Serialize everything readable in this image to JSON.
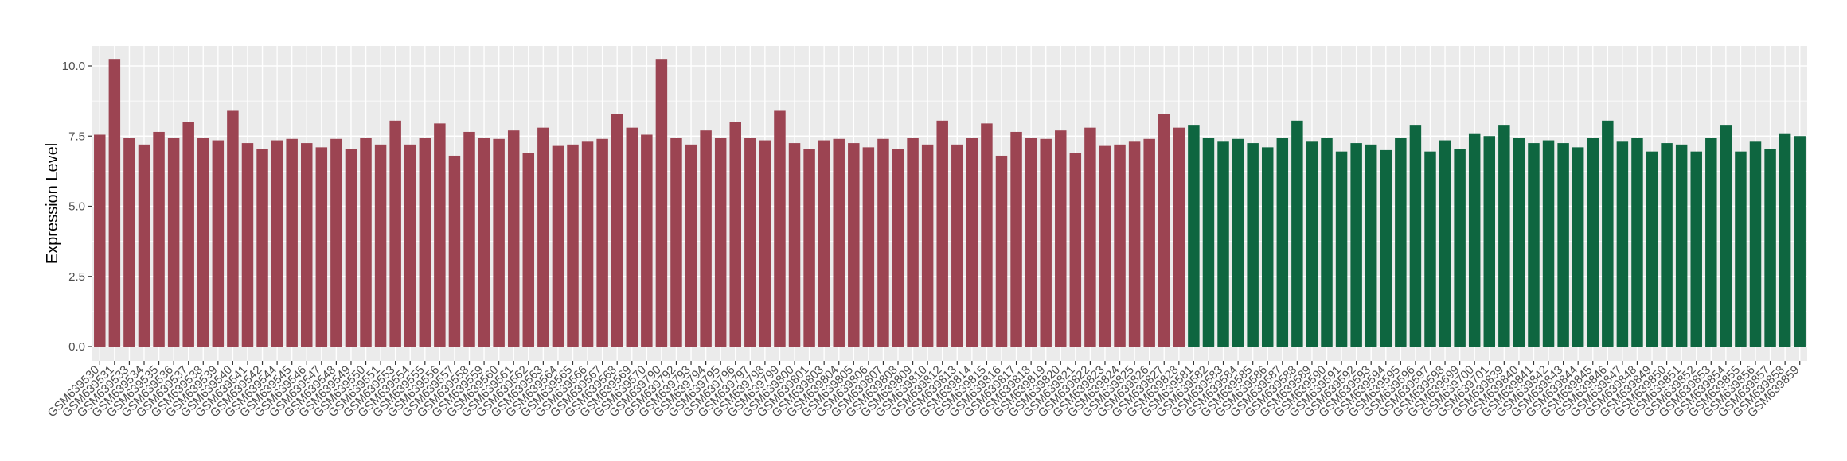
{
  "chart_data": {
    "type": "bar",
    "title": "",
    "xlabel": "",
    "ylabel": "Expression Level",
    "ylim": [
      0,
      10.75
    ],
    "yticks": [
      0.0,
      2.5,
      5.0,
      7.5,
      10.0
    ],
    "ytick_labels": [
      "0.0",
      "2.5",
      "5.0",
      "7.5",
      "10.0"
    ],
    "grid": true,
    "legend": "none",
    "colors": {
      "group1": "#9c4452",
      "group2": "#0e6640",
      "panel": "#ebebeb",
      "gridline": "#ffffff"
    },
    "categories": [
      "GSM639530",
      "GSM639531",
      "GSM639533",
      "GSM639534",
      "GSM639535",
      "GSM639536",
      "GSM639537",
      "GSM639538",
      "GSM639539",
      "GSM639540",
      "GSM639541",
      "GSM639542",
      "GSM639544",
      "GSM639545",
      "GSM639546",
      "GSM639547",
      "GSM639548",
      "GSM639549",
      "GSM639550",
      "GSM639551",
      "GSM639553",
      "GSM639554",
      "GSM639555",
      "GSM639556",
      "GSM639557",
      "GSM639558",
      "GSM639559",
      "GSM639560",
      "GSM639561",
      "GSM639562",
      "GSM639563",
      "GSM639564",
      "GSM639565",
      "GSM639566",
      "GSM639567",
      "GSM639568",
      "GSM639569",
      "GSM639570",
      "GSM639790",
      "GSM639792",
      "GSM639793",
      "GSM639794",
      "GSM639795",
      "GSM639796",
      "GSM639797",
      "GSM639798",
      "GSM639799",
      "GSM639800",
      "GSM639801",
      "GSM639803",
      "GSM639804",
      "GSM639805",
      "GSM639806",
      "GSM639807",
      "GSM639808",
      "GSM639809",
      "GSM639810",
      "GSM639812",
      "GSM639813",
      "GSM639814",
      "GSM639815",
      "GSM639816",
      "GSM639817",
      "GSM639818",
      "GSM639819",
      "GSM639820",
      "GSM639821",
      "GSM639822",
      "GSM639823",
      "GSM639824",
      "GSM639825",
      "GSM639826",
      "GSM639827",
      "GSM639828",
      "GSM639581",
      "GSM639582",
      "GSM639583",
      "GSM639584",
      "GSM639585",
      "GSM639586",
      "GSM639587",
      "GSM639588",
      "GSM639589",
      "GSM639590",
      "GSM639591",
      "GSM639592",
      "GSM639593",
      "GSM639594",
      "GSM639595",
      "GSM639596",
      "GSM639597",
      "GSM639598",
      "GSM639699",
      "GSM639700",
      "GSM639701",
      "GSM639839",
      "GSM639840",
      "GSM639841",
      "GSM639842",
      "GSM639843",
      "GSM639844",
      "GSM639845",
      "GSM639846",
      "GSM639847",
      "GSM639848",
      "GSM639849",
      "GSM639850",
      "GSM639851",
      "GSM639852",
      "GSM639853",
      "GSM639854",
      "GSM639855",
      "GSM639856",
      "GSM639857",
      "GSM639858",
      "GSM639859"
    ],
    "values": [
      7.55,
      10.25,
      7.45,
      7.2,
      7.65,
      7.45,
      8.0,
      7.45,
      7.35,
      8.4,
      7.25,
      7.05,
      7.35,
      7.4,
      7.25,
      7.1,
      7.4,
      7.05,
      7.45,
      7.2,
      8.05,
      7.2,
      7.45,
      7.95,
      6.8,
      7.65,
      7.45,
      7.4,
      7.7,
      6.9,
      7.8,
      7.15,
      7.2,
      7.3,
      7.4,
      8.3,
      7.8,
      7.55,
      10.25,
      7.45,
      7.2,
      7.7,
      7.45,
      8.0,
      7.45,
      7.35,
      8.4,
      7.25,
      7.05,
      7.35,
      7.4,
      7.25,
      7.1,
      7.4,
      7.05,
      7.45,
      7.2,
      8.05,
      7.2,
      7.45,
      7.95,
      6.8,
      7.65,
      7.45,
      7.4,
      7.7,
      6.9,
      7.8,
      7.15,
      7.2,
      7.3,
      7.4,
      8.3,
      7.8,
      7.9,
      7.45,
      7.3,
      7.4,
      7.25,
      7.1,
      7.45,
      8.05,
      7.3,
      7.45,
      6.95,
      7.25,
      7.2,
      7.0,
      7.45,
      7.9,
      6.95,
      7.35,
      7.05,
      7.6,
      7.5,
      7.9,
      7.45,
      7.25,
      7.35,
      7.25,
      7.1,
      7.45,
      8.05,
      7.3,
      7.45,
      6.95,
      7.25,
      7.2,
      6.95,
      7.45,
      7.9,
      6.95,
      7.3,
      7.05,
      7.6,
      7.5
    ],
    "group_sizes": [
      74,
      42
    ]
  }
}
